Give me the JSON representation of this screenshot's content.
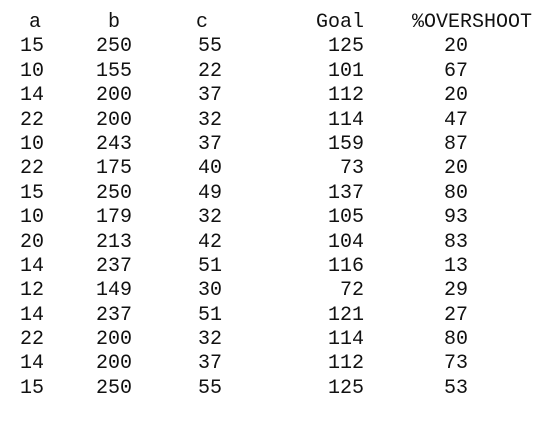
{
  "headers": {
    "a": "a",
    "b": "b",
    "c": "c",
    "goal": "Goal",
    "overshoot": "%OVERSHOOT"
  },
  "rows": [
    {
      "a": "15",
      "b": "250",
      "c": "55",
      "goal": "125",
      "overshoot": "20"
    },
    {
      "a": "10",
      "b": "155",
      "c": "22",
      "goal": "101",
      "overshoot": "67"
    },
    {
      "a": "14",
      "b": "200",
      "c": "37",
      "goal": "112",
      "overshoot": "20"
    },
    {
      "a": "22",
      "b": "200",
      "c": "32",
      "goal": "114",
      "overshoot": "47"
    },
    {
      "a": "10",
      "b": "243",
      "c": "37",
      "goal": "159",
      "overshoot": "87"
    },
    {
      "a": "22",
      "b": "175",
      "c": "40",
      "goal": "73",
      "overshoot": "20"
    },
    {
      "a": "15",
      "b": "250",
      "c": "49",
      "goal": "137",
      "overshoot": "80"
    },
    {
      "a": "10",
      "b": "179",
      "c": "32",
      "goal": "105",
      "overshoot": "93"
    },
    {
      "a": "20",
      "b": "213",
      "c": "42",
      "goal": "104",
      "overshoot": "83"
    },
    {
      "a": "14",
      "b": "237",
      "c": "51",
      "goal": "116",
      "overshoot": "13"
    },
    {
      "a": "12",
      "b": "149",
      "c": "30",
      "goal": "72",
      "overshoot": "29"
    },
    {
      "a": "14",
      "b": "237",
      "c": "51",
      "goal": "121",
      "overshoot": "27"
    },
    {
      "a": "22",
      "b": "200",
      "c": "32",
      "goal": "114",
      "overshoot": "80"
    },
    {
      "a": "14",
      "b": "200",
      "c": "37",
      "goal": "112",
      "overshoot": "73"
    },
    {
      "a": "15",
      "b": "250",
      "c": "55",
      "goal": "125",
      "overshoot": "53"
    }
  ]
}
